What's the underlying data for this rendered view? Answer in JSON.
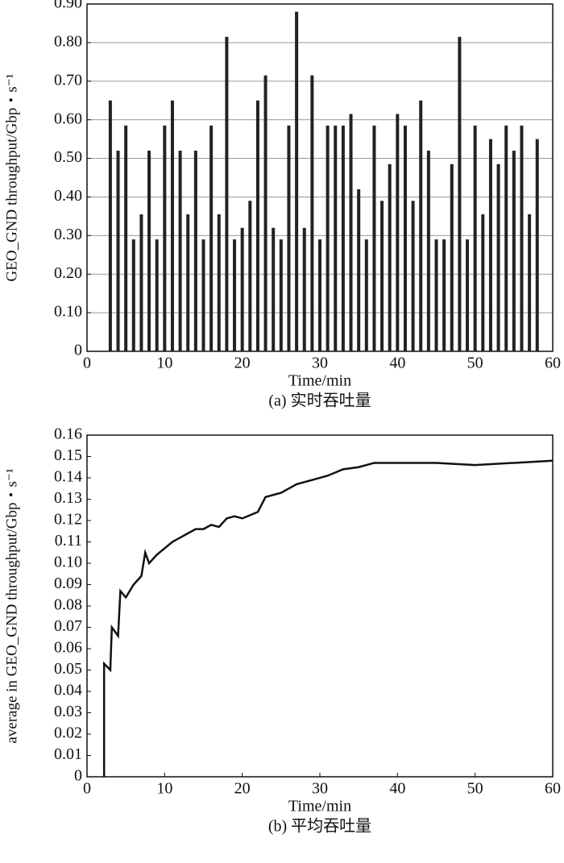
{
  "chart_data": [
    {
      "type": "bar",
      "ylabel": "GEO_GND throughput/Gbp・s⁻¹",
      "xlabel": "Time/min",
      "caption": "(a) 实时吞吐量",
      "x": [
        3,
        4,
        5,
        6,
        7,
        8,
        9,
        10,
        11,
        12,
        13,
        14,
        15,
        16,
        17,
        18,
        19,
        20,
        21,
        22,
        23,
        24,
        25,
        26,
        27,
        28,
        29,
        30,
        31,
        32,
        33,
        34,
        35,
        36,
        37,
        38,
        39,
        40,
        41,
        42,
        43,
        44,
        45,
        46,
        47,
        48,
        49,
        50,
        51,
        52,
        53,
        54,
        55,
        56,
        57,
        58
      ],
      "values": [
        0.65,
        0.52,
        0.585,
        0.29,
        0.355,
        0.52,
        0.29,
        0.585,
        0.65,
        0.52,
        0.355,
        0.52,
        0.29,
        0.585,
        0.355,
        0.815,
        0.29,
        0.32,
        0.39,
        0.65,
        0.715,
        0.32,
        0.29,
        0.585,
        0.88,
        0.32,
        0.715,
        0.29,
        0.585,
        0.585,
        0.585,
        0.615,
        0.42,
        0.29,
        0.585,
        0.39,
        0.485,
        0.615,
        0.585,
        0.39,
        0.65,
        0.52,
        0.29,
        0.29,
        0.485,
        0.815,
        0.29,
        0.585,
        0.355,
        0.55,
        0.485,
        0.585,
        0.52,
        0.585,
        0.355,
        0.55
      ],
      "color": "#222222",
      "xlim": [
        0,
        60
      ],
      "xticks": [
        0,
        10,
        20,
        30,
        40,
        50,
        60
      ],
      "ylim": [
        0,
        0.9
      ],
      "yticks": [
        0,
        {
          "value": 0.1,
          "label": "0.10"
        },
        {
          "value": 0.2,
          "label": "0.20"
        },
        {
          "value": 0.3,
          "label": "0.30"
        },
        {
          "value": 0.4,
          "label": "0.40"
        },
        {
          "value": 0.5,
          "label": "0.50"
        },
        {
          "value": 0.6,
          "label": "0.60"
        },
        {
          "value": 0.7,
          "label": "0.70"
        },
        {
          "value": 0.8,
          "label": "0.80"
        },
        {
          "value": 0.9,
          "label": "0.90"
        }
      ],
      "grid": true
    },
    {
      "type": "line",
      "ylabel": "average in GEO_GND throughput/Gbp・s⁻¹",
      "xlabel": "Time/min",
      "caption": "(b) 平均吞吐量",
      "x": [
        2.2,
        2.2,
        3,
        3.2,
        4,
        4.3,
        5,
        6,
        7,
        7.5,
        8,
        9,
        10,
        11,
        12,
        13,
        14,
        15,
        16,
        17,
        18,
        19,
        20,
        22,
        23,
        25,
        27,
        29,
        31,
        33,
        35,
        37,
        40,
        45,
        50,
        55,
        60
      ],
      "values": [
        0,
        0.053,
        0.05,
        0.07,
        0.066,
        0.087,
        0.084,
        0.09,
        0.094,
        0.105,
        0.1,
        0.104,
        0.107,
        0.11,
        0.112,
        0.114,
        0.116,
        0.116,
        0.118,
        0.117,
        0.121,
        0.122,
        0.121,
        0.124,
        0.131,
        0.133,
        0.137,
        0.139,
        0.141,
        0.144,
        0.145,
        0.147,
        0.147,
        0.147,
        0.146,
        0.147,
        0.148
      ],
      "color": "#111111",
      "xlim": [
        0,
        60
      ],
      "xticks": [
        0,
        10,
        20,
        30,
        40,
        50,
        60
      ],
      "ylim": [
        0,
        0.16
      ],
      "yticks": [
        0,
        0.01,
        0.02,
        0.03,
        0.04,
        0.05,
        0.06,
        0.07,
        0.08,
        0.09,
        {
          "value": 0.1,
          "label": "0.10"
        },
        0.11,
        0.12,
        0.13,
        0.14,
        0.15,
        0.16
      ],
      "grid": false
    }
  ]
}
